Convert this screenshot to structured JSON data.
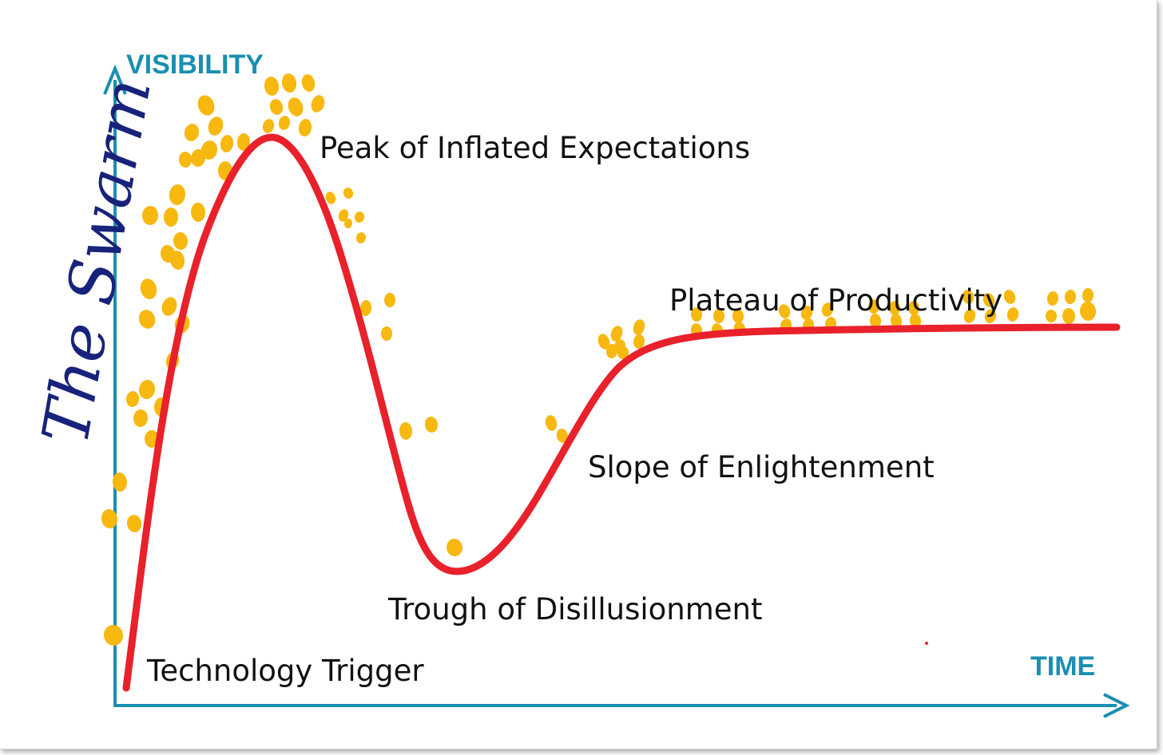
{
  "axes": {
    "y_title": "VISIBILITY",
    "x_title": "TIME"
  },
  "annotation": "The Swarm",
  "phases": {
    "trigger": "Technology Trigger",
    "peak": "Peak of Inflated Expectations",
    "trough": "Trough of Disillusionment",
    "slope": "Slope of Enlightenment",
    "plateau": "Plateau of Productivity"
  },
  "colors": {
    "axis": "#1a8fb0",
    "curve": "#e8212b",
    "swarm_dots": "#f7b80f",
    "swarm_text": "#17237a",
    "labels": "#111111"
  }
}
